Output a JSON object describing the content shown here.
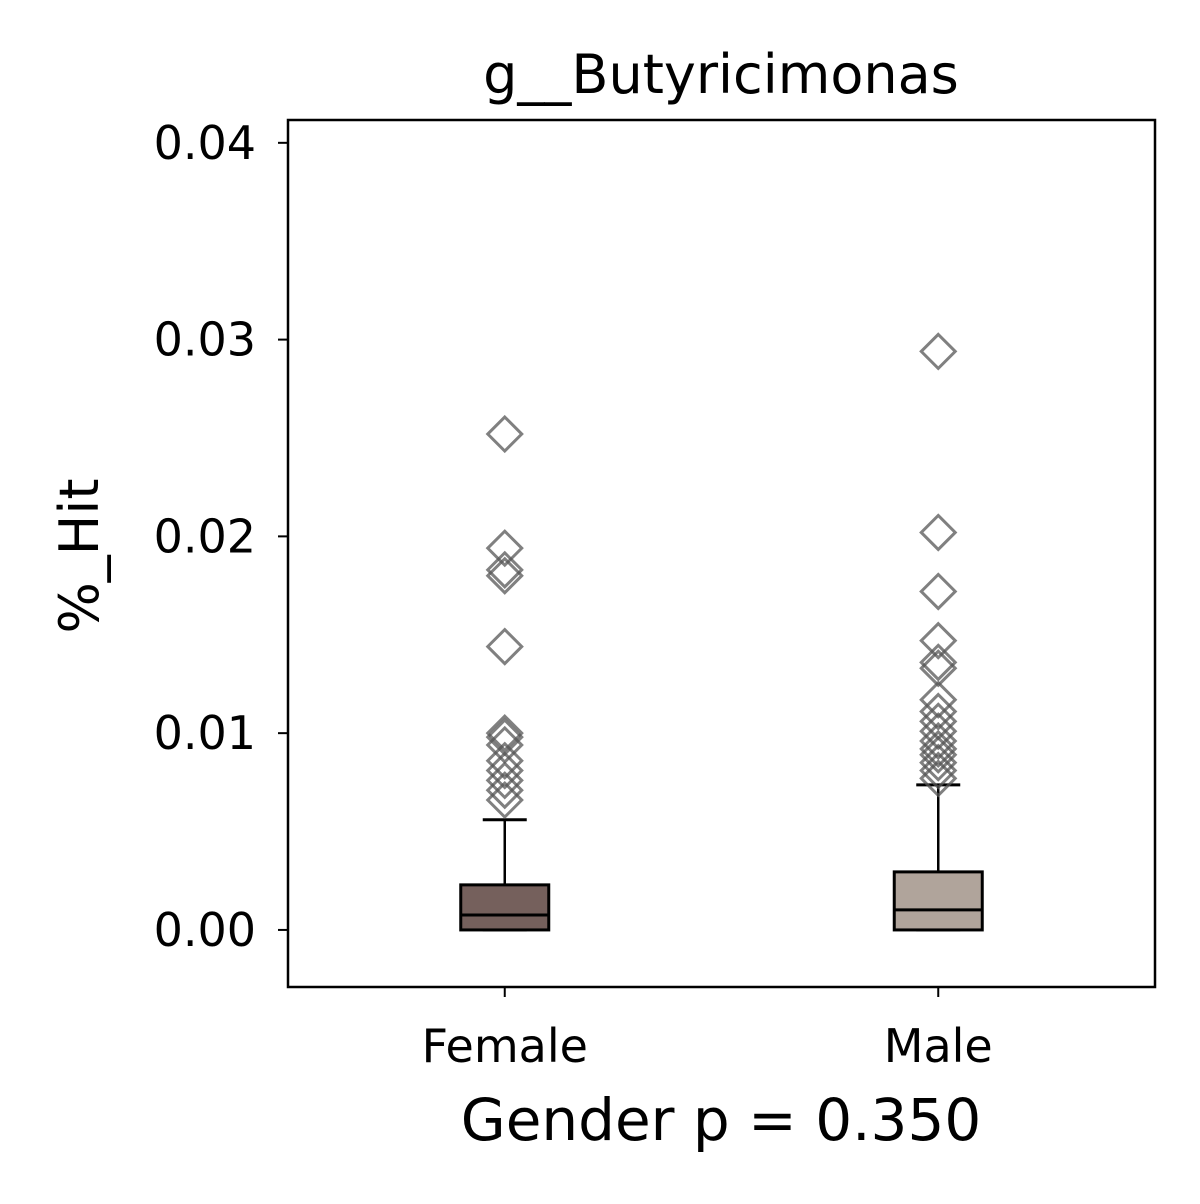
{
  "chart_data": {
    "type": "box",
    "title": "g__Butyricimonas",
    "xlabel": "Gender p = 0.350",
    "ylabel": "%_Hit",
    "categories": [
      "Female",
      "Male"
    ],
    "ylim": [
      -0.0029,
      0.04116
    ],
    "yticks": [
      {
        "value": 0,
        "label": "0.00"
      },
      0.01,
      0.02,
      0.03,
      0.04
    ],
    "flier_color": "#555555",
    "series": [
      {
        "name": "Female",
        "color": "#75605c",
        "whislo": 0,
        "q1": 0,
        "median": 0.00076,
        "q3": 0.00229,
        "whishi": 0.0056,
        "fliers": [
          0.0252,
          0.0194,
          0.0183,
          0.018,
          0.0144,
          0.01,
          0.0098,
          0.0094,
          0.0086,
          0.0081,
          0.0076,
          0.0071,
          0.0066
        ]
      },
      {
        "name": "Male",
        "color": "#b0a49b",
        "whislo": 0,
        "q1": 0,
        "median": 0.00102,
        "q3": 0.00295,
        "whishi": 0.00737,
        "fliers": [
          0.0294,
          0.0202,
          0.0172,
          0.0147,
          0.0136,
          0.0133,
          0.0117,
          0.0111,
          0.0106,
          0.0101,
          0.0096,
          0.0092,
          0.0089,
          0.0085,
          0.0081,
          0.0077
        ]
      }
    ]
  }
}
